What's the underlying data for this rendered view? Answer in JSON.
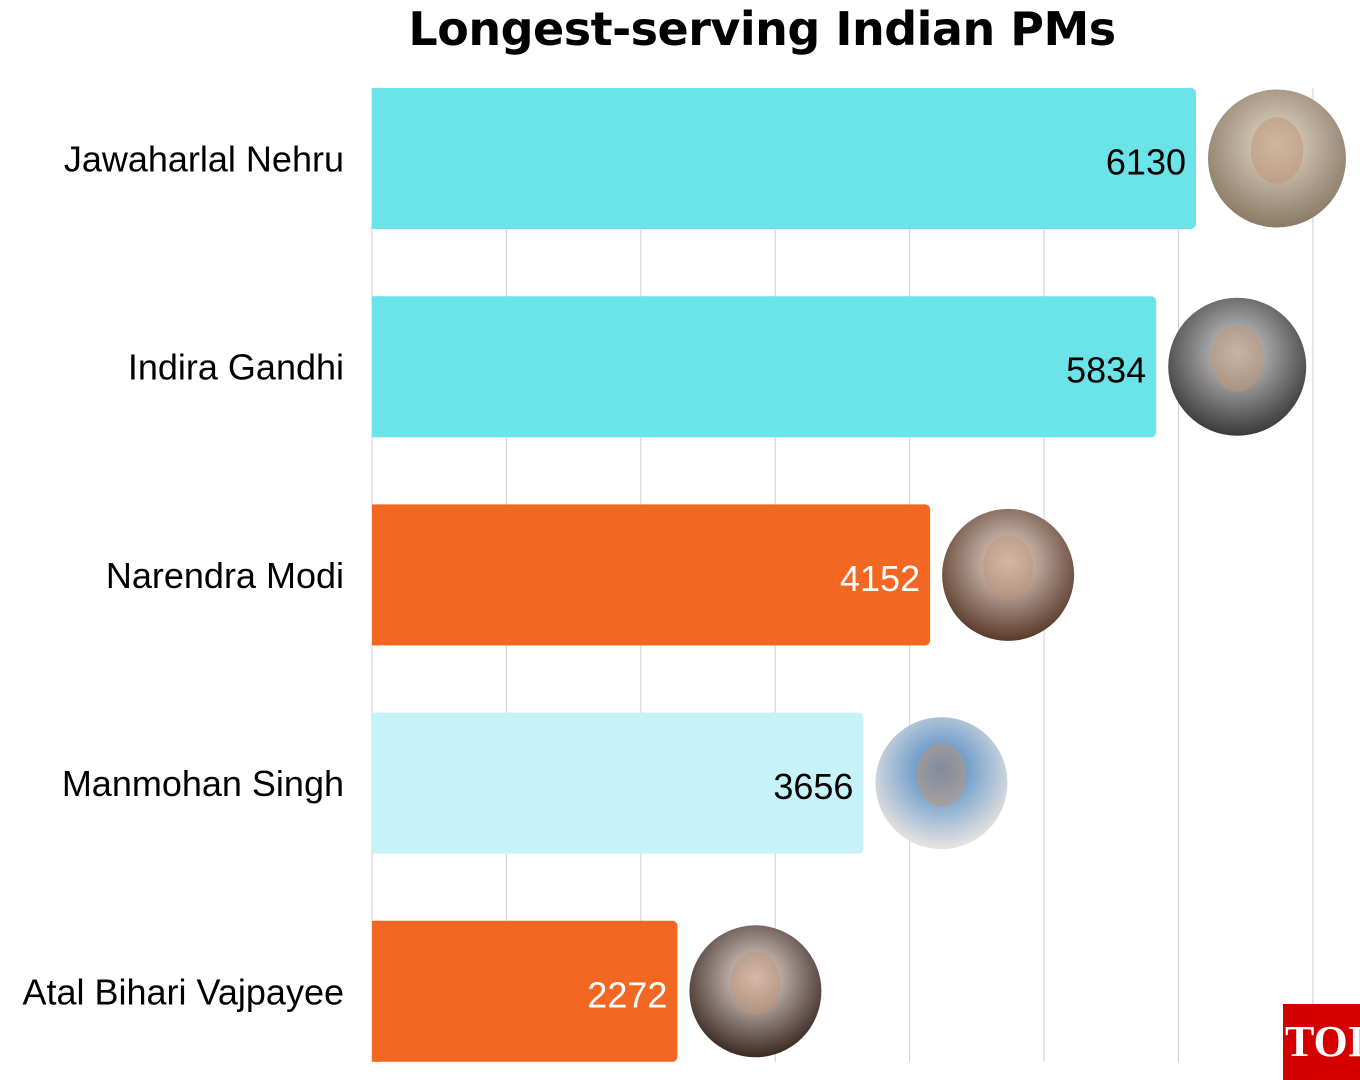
{
  "chart_data": {
    "type": "bar",
    "orientation": "horizontal",
    "title": "Longest-serving Indian PMs",
    "categories": [
      "Jawaharlal Nehru",
      "Indira Gandhi",
      "Narendra Modi",
      "Manmohan Singh",
      "Atal Bihari Vajpayee"
    ],
    "values": [
      6130,
      5834,
      4152,
      3656,
      2272
    ],
    "bar_colors": [
      "#6AE4E9",
      "#6AE4E9",
      "#F26722",
      "#C5F3F9",
      "#F26722"
    ],
    "label_colors": [
      "#000000",
      "#000000",
      "#FFFFFF",
      "#000000",
      "#FFFFFF"
    ],
    "xlim": [
      0,
      7000
    ],
    "x_grid_step": 1000,
    "grid": true,
    "xlabel": "",
    "ylabel": ""
  },
  "logo": "TOI"
}
